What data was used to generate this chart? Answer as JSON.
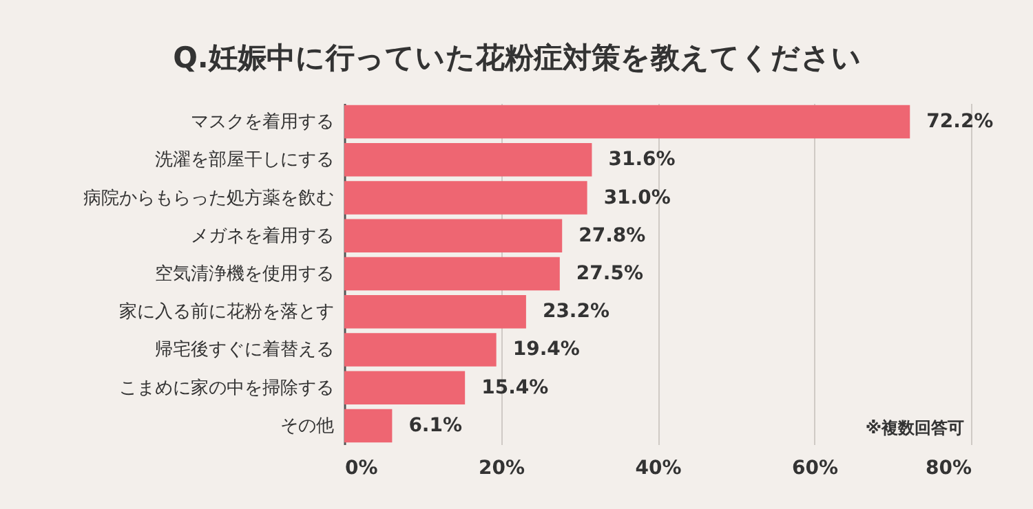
{
  "chart_data": {
    "type": "bar",
    "orientation": "horizontal",
    "title": "Q.妊娠中に行っていた花粉症対策を教えてください",
    "categories": [
      "マスクを着用する",
      "洗濯を部屋干しにする",
      "病院からもらった処方薬を飲む",
      "メガネを着用する",
      "空気清浄機を使用する",
      "家に入る前に花粉を落とす",
      "帰宅後すぐに着替える",
      "こまめに家の中を掃除する",
      "その他"
    ],
    "values": [
      72.2,
      31.6,
      31.0,
      27.8,
      27.5,
      23.2,
      19.4,
      15.4,
      6.1
    ],
    "value_labels": [
      "72.2%",
      "31.6%",
      "31.0%",
      "27.8%",
      "27.5%",
      "23.2%",
      "19.4%",
      "15.4%",
      "6.1%"
    ],
    "color": "#ee6672",
    "xlim": [
      0,
      80
    ],
    "xticks": [
      {
        "value": 0,
        "label": "0%"
      },
      {
        "value": 20,
        "label": "20%"
      },
      {
        "value": 40,
        "label": "40%"
      },
      {
        "value": 60,
        "label": "60%"
      },
      {
        "value": 80,
        "label": "80%"
      }
    ],
    "grid": "x",
    "annotations": [
      "※複数回答可"
    ]
  }
}
